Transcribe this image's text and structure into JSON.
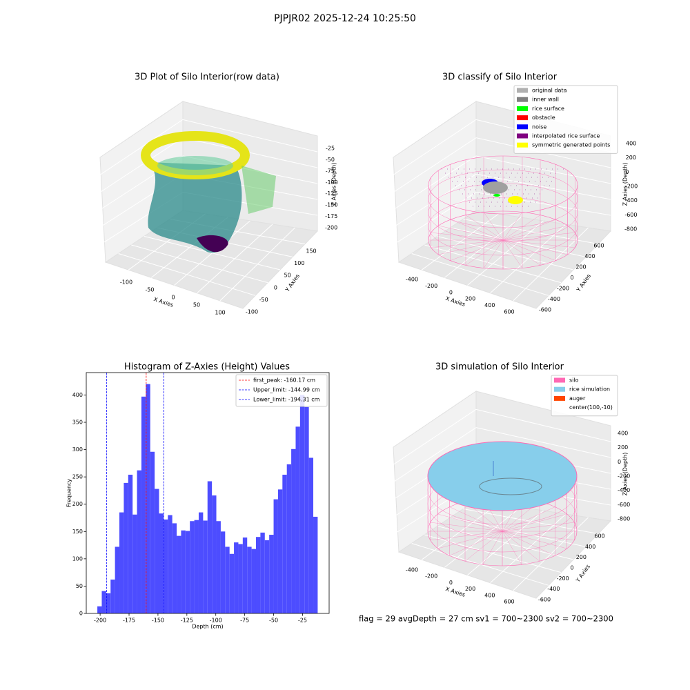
{
  "title": "PJPJR02 2025-12-24 10:25:50",
  "footer": "flag = 29  avgDepth = 27 cm    sv1 = 700~2300  sv2 = 700~2300",
  "chart_data": [
    {
      "type": "scatter3d",
      "title": "3D Plot of Silo Interior(row data)",
      "xlabel": "X Axies",
      "ylabel": "Y Axies",
      "zlabel": "Z Axies (Depth)",
      "xticks": [
        -100,
        -50,
        0,
        50,
        100
      ],
      "yticks": [
        -100,
        -50,
        0,
        50,
        100,
        150
      ],
      "zticks": [
        -25,
        -50,
        -75,
        -100,
        -125,
        -150,
        -175,
        -200
      ]
    },
    {
      "type": "classify3d",
      "title": "3D classify of Silo Interior",
      "xlabel": "X Axies",
      "ylabel": "Y Axies",
      "zlabel": "Z Axies (Depth)",
      "xticks": [
        -400,
        -200,
        0,
        200,
        400,
        600
      ],
      "yticks": [
        -600,
        -400,
        -200,
        0,
        200,
        400,
        600
      ],
      "zticks": [
        400,
        200,
        0,
        -200,
        -400,
        -600,
        -800
      ],
      "legend": [
        {
          "name": "original data",
          "color": "#b0b0b0"
        },
        {
          "name": "inner wall",
          "color": "#808080"
        },
        {
          "name": "rice surface",
          "color": "#00ff00"
        },
        {
          "name": "obstacle",
          "color": "#ff0000"
        },
        {
          "name": "noise",
          "color": "#0000ff"
        },
        {
          "name": "interpolated rice surface",
          "color": "#800080"
        },
        {
          "name": "symmetric generated points",
          "color": "#ffff00"
        }
      ]
    },
    {
      "type": "histogram",
      "title": "Histogram of Z-Axies (Height) Values",
      "xlabel": "Depth (cm)",
      "ylabel": "Frequency",
      "color": "#4d4dff",
      "bins": [
        -202.4,
        -198.59,
        -194.78,
        -190.97,
        -187.16,
        -183.35,
        -179.54,
        -175.73,
        -171.92,
        -168.11,
        -164.3,
        -160.49,
        -156.68,
        -152.87,
        -149.06,
        -145.25,
        -141.44,
        -137.63,
        -133.82,
        -130.01,
        -126.2,
        -122.39,
        -118.58,
        -114.77,
        -110.96,
        -107.15,
        -103.34,
        -99.53,
        -95.72,
        -91.91,
        -88.1,
        -84.29,
        -80.48,
        -76.67,
        -72.86,
        -69.05,
        -65.24,
        -61.43,
        -57.62,
        -53.81,
        -50.0,
        -46.19,
        -42.38,
        -38.57,
        -34.76,
        -30.95,
        -27.14,
        -23.33,
        -19.52,
        -15.71,
        -11.9
      ],
      "values": [
        13,
        41,
        37,
        62,
        122,
        185,
        239,
        254,
        181,
        262,
        397,
        420,
        296,
        228,
        183,
        172,
        180,
        165,
        142,
        152,
        151,
        169,
        171,
        185,
        170,
        242,
        216,
        169,
        150,
        122,
        109,
        130,
        127,
        139,
        122,
        118,
        140,
        148,
        134,
        144,
        209,
        227,
        254,
        273,
        301,
        342,
        400,
        378,
        285,
        177
      ],
      "xlim": [
        -212,
        -2
      ],
      "ylim": [
        0,
        441
      ],
      "xticks": [
        -200,
        -175,
        -150,
        -125,
        -100,
        -75,
        -50,
        -25
      ],
      "yticks": [
        0,
        50,
        100,
        150,
        200,
        250,
        300,
        350,
        400
      ],
      "lines": [
        {
          "name": "first_peak: -160.17 cm",
          "value": -160.17,
          "color": "#ff0000"
        },
        {
          "name": "Upper_limit: -144.99 cm",
          "value": -144.99,
          "color": "#0000ff"
        },
        {
          "name": "Lower_limit: -194.31 cm",
          "value": -194.31,
          "color": "#0000ff"
        }
      ]
    },
    {
      "type": "surface3d",
      "title": "3D simulation of Silo Interior",
      "xlabel": "X Axies",
      "ylabel": "Y Axies",
      "zlabel": "Z Axies (Depth)",
      "xticks": [
        -400,
        -200,
        0,
        200,
        400,
        600
      ],
      "yticks": [
        -600,
        -400,
        -200,
        0,
        200,
        400,
        600
      ],
      "zticks": [
        400,
        200,
        0,
        -200,
        -400,
        -600,
        -800
      ],
      "legend": [
        {
          "name": "silo",
          "color": "#ff69b4"
        },
        {
          "name": "rice simulation",
          "color": "#87ceeb"
        },
        {
          "name": "auger",
          "color": "#ff4500"
        },
        {
          "name": "center(100,-10)",
          "color": null
        }
      ]
    }
  ]
}
